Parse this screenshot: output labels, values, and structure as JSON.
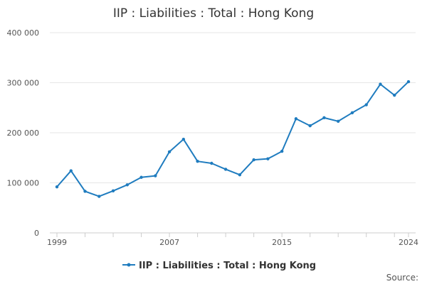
{
  "chart_data": {
    "type": "line",
    "title": "IIP : Liabilities : Total : Hong Kong",
    "xlabel": "",
    "ylabel": "",
    "x": [
      1999,
      2000,
      2001,
      2002,
      2003,
      2004,
      2005,
      2006,
      2007,
      2008,
      2009,
      2010,
      2011,
      2012,
      2013,
      2014,
      2015,
      2016,
      2017,
      2018,
      2019,
      2020,
      2021,
      2022,
      2023,
      2024
    ],
    "series": [
      {
        "name": "IIP : Liabilities : Total : Hong Kong",
        "color": "#1f7cbf",
        "values": [
          92000,
          124000,
          83000,
          73000,
          84000,
          96000,
          111000,
          114000,
          162000,
          187000,
          143000,
          139000,
          127000,
          116000,
          146000,
          148000,
          163000,
          228000,
          214000,
          230000,
          223000,
          240000,
          256000,
          297000,
          275000,
          302000
        ]
      }
    ],
    "ylim": [
      0,
      400000
    ],
    "xlim": [
      1999,
      2024
    ],
    "yticks": [
      0,
      100000,
      200000,
      300000,
      400000
    ],
    "ytick_labels": [
      "0",
      "100 000",
      "200 000",
      "300 000",
      "400 000"
    ],
    "xtick_labels": [
      "1999",
      "2007",
      "2015",
      "2024"
    ],
    "xtick_label_years": [
      1999,
      2007,
      2015,
      2024
    ],
    "grid": true,
    "legend_position": "bottom-center",
    "source_label": "Source:"
  }
}
